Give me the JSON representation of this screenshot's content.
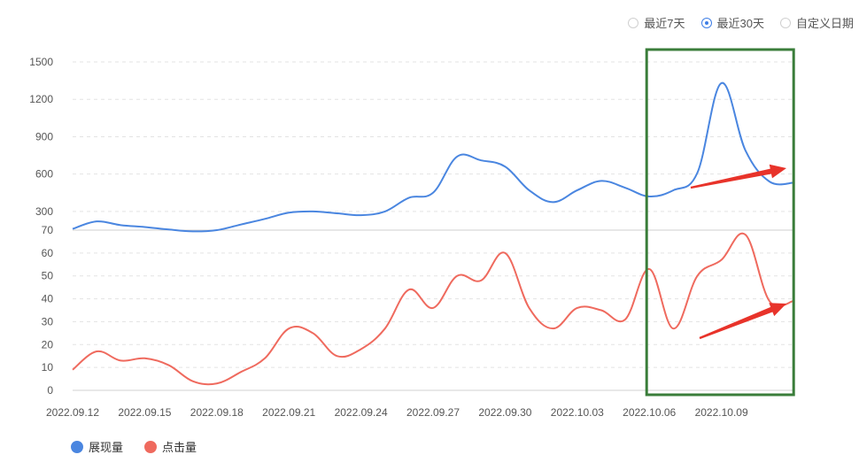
{
  "range_options": [
    {
      "label": "最近7天",
      "checked": false
    },
    {
      "label": "最近30天",
      "checked": true
    },
    {
      "label": "自定义日期",
      "checked": false
    }
  ],
  "colors": {
    "impressions": "#4a86e0",
    "clicks": "#ef6a5e",
    "highlight_box": "#3a7d3a",
    "arrow": "#e8332a",
    "accent": "#3f7fe6"
  },
  "legend": [
    {
      "label": "展现量",
      "color": "#4a86e0"
    },
    {
      "label": "点击量",
      "color": "#ef6a5e"
    }
  ],
  "chart_data": [
    {
      "type": "line",
      "series": [
        {
          "name": "展现量"
        }
      ],
      "x": [
        "2022.09.12",
        "2022.09.13",
        "2022.09.14",
        "2022.09.15",
        "2022.09.16",
        "2022.09.17",
        "2022.09.18",
        "2022.09.19",
        "2022.09.20",
        "2022.09.21",
        "2022.09.22",
        "2022.09.23",
        "2022.09.24",
        "2022.09.25",
        "2022.09.26",
        "2022.09.27",
        "2022.09.28",
        "2022.09.29",
        "2022.09.30",
        "2022.10.01",
        "2022.10.02",
        "2022.10.03",
        "2022.10.04",
        "2022.10.05",
        "2022.10.06",
        "2022.10.07",
        "2022.10.08",
        "2022.10.09",
        "2022.10.10",
        "2022.10.11",
        "2022.10.12"
      ],
      "values": [
        160,
        220,
        190,
        175,
        155,
        140,
        150,
        195,
        240,
        290,
        300,
        285,
        270,
        300,
        410,
        450,
        740,
        710,
        660,
        470,
        375,
        470,
        545,
        490,
        420,
        470,
        610,
        1330,
        790,
        540,
        530
      ],
      "y_ticks": [
        300,
        600,
        900,
        1200,
        1500
      ],
      "ylim": [
        150,
        1500
      ],
      "grid": true
    },
    {
      "type": "line",
      "series": [
        {
          "name": "点击量"
        }
      ],
      "x": [
        "2022.09.12",
        "2022.09.13",
        "2022.09.14",
        "2022.09.15",
        "2022.09.16",
        "2022.09.17",
        "2022.09.18",
        "2022.09.19",
        "2022.09.20",
        "2022.09.21",
        "2022.09.22",
        "2022.09.23",
        "2022.09.24",
        "2022.09.25",
        "2022.09.26",
        "2022.09.27",
        "2022.09.28",
        "2022.09.29",
        "2022.09.30",
        "2022.10.01",
        "2022.10.02",
        "2022.10.03",
        "2022.10.04",
        "2022.10.05",
        "2022.10.06",
        "2022.10.07",
        "2022.10.08",
        "2022.10.09",
        "2022.10.10",
        "2022.10.11",
        "2022.10.12"
      ],
      "values": [
        9,
        17,
        13,
        14,
        11,
        4,
        3,
        8,
        14,
        27,
        25,
        15,
        18,
        27,
        44,
        36,
        50,
        48,
        60,
        36,
        27,
        36,
        35,
        31,
        53,
        27,
        50,
        57,
        68,
        39,
        39
      ],
      "x_tick_labels": [
        "2022.09.12",
        "2022.09.15",
        "2022.09.18",
        "2022.09.21",
        "2022.09.24",
        "2022.09.27",
        "2022.09.30",
        "2022.10.03",
        "2022.10.06",
        "2022.10.09"
      ],
      "y_ticks": [
        0,
        10,
        20,
        30,
        40,
        50,
        60,
        70
      ],
      "ylim": [
        0,
        70
      ],
      "grid": true
    }
  ]
}
